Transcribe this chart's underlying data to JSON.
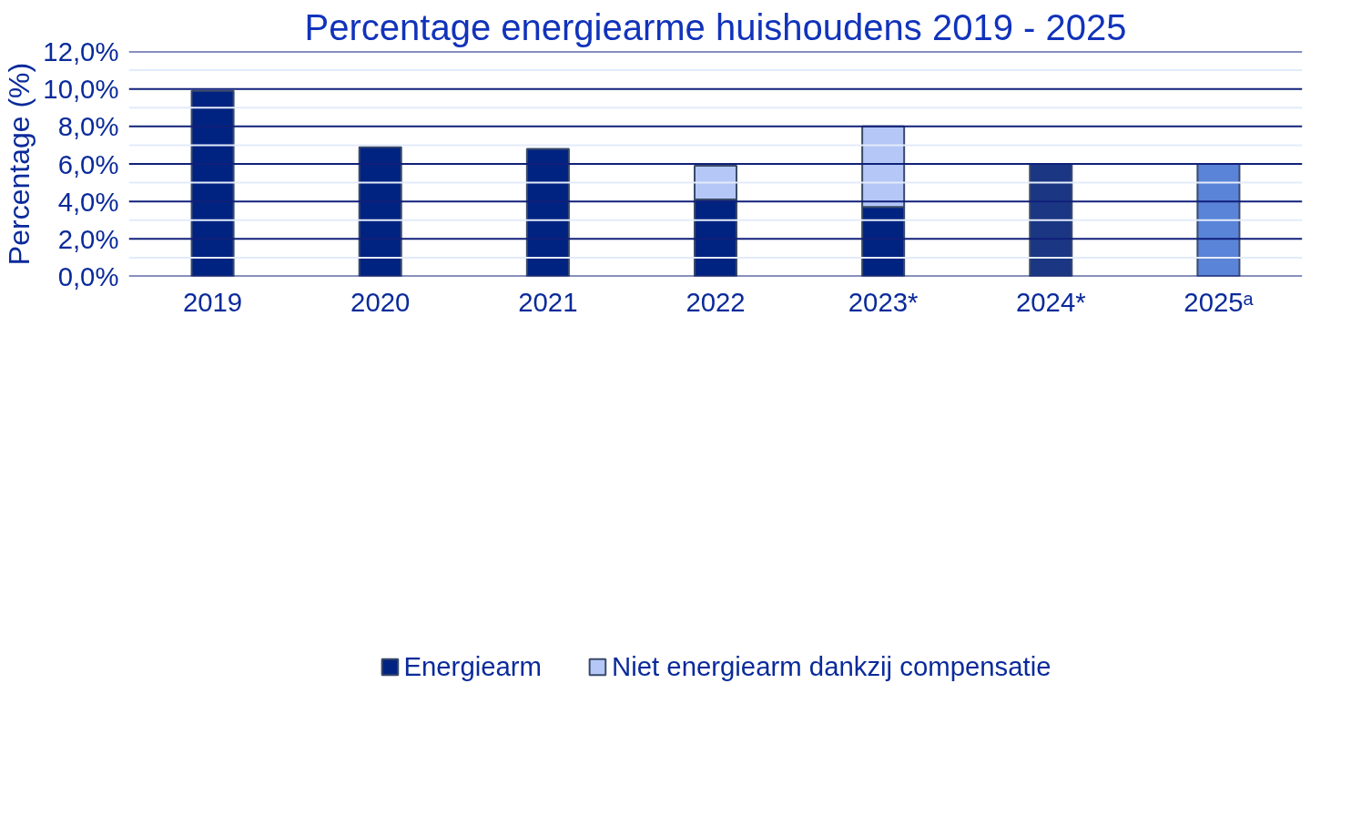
{
  "chart_data": {
    "type": "bar",
    "title": "Percentage energiearme huishoudens 2019 - 2025",
    "ylabel": "Percentage (%)",
    "categories": [
      "2019",
      "2020",
      "2021",
      "2022",
      "2023*",
      "2024*",
      "2025ᵃ"
    ],
    "stacked": true,
    "series": [
      {
        "name": "Energiearm",
        "color": "#002381",
        "colors": [
          "#002381",
          "#002381",
          "#002381",
          "#002381",
          "#002381",
          "#1b3683",
          "#5a84d8"
        ],
        "values": [
          9.9,
          6.9,
          6.8,
          4.1,
          3.7,
          6.0,
          6.0
        ]
      },
      {
        "name": "Niet energiearm dankzij compensatie",
        "color": "#b4c7f7",
        "values": [
          null,
          null,
          null,
          1.8,
          4.3,
          null,
          null
        ]
      }
    ],
    "ylim": [
      0,
      12
    ],
    "yticks": [
      {
        "value": 0,
        "label": "0,0%"
      },
      {
        "value": 1,
        "label": null
      },
      {
        "value": 2,
        "label": "2,0%"
      },
      {
        "value": 3,
        "label": null
      },
      {
        "value": 4,
        "label": "4,0%"
      },
      {
        "value": 5,
        "label": null
      },
      {
        "value": 6,
        "label": "6,0%"
      },
      {
        "value": 7,
        "label": null
      },
      {
        "value": 8,
        "label": "8,0%"
      },
      {
        "value": 9,
        "label": null
      },
      {
        "value": 10,
        "label": "10,0%"
      },
      {
        "value": 11,
        "label": null
      },
      {
        "value": 12,
        "label": "12,0%"
      }
    ],
    "grid": "y",
    "legend": "bottom"
  }
}
